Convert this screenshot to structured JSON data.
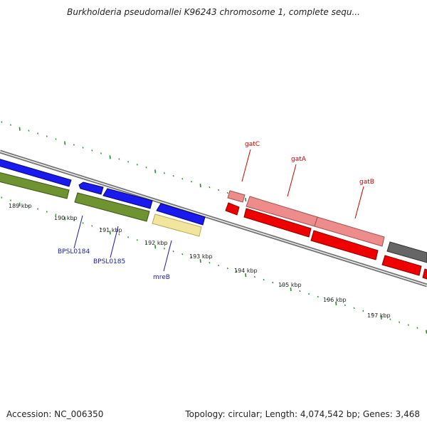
{
  "title": "Burkholderia pseudomallei K96243 chromosome 1, complete sequ...",
  "footer": {
    "accession": "Accession: NC_006350",
    "summary": "Topology: circular; Length: 4,074,542 bp; Genes: 3,468"
  },
  "ticks": [
    "189 kbp",
    "190 kbp",
    "191 kbp",
    "192 kbp",
    "193 kbp",
    "194 kbp",
    "195 kbp",
    "196 kbp",
    "197 kbp"
  ],
  "gene_labels": [
    {
      "name": "BPSL0184",
      "color": "#1a1aa8"
    },
    {
      "name": "BPSL0185",
      "color": "#1a1aa8"
    },
    {
      "name": "mreB",
      "color": "#1a1aa8"
    },
    {
      "name": "gatC",
      "color": "#cc0000"
    },
    {
      "name": "gatA",
      "color": "#cc0000"
    },
    {
      "name": "gatB",
      "color": "#cc0000"
    }
  ],
  "colors": {
    "blue_gene": "#1010e0",
    "green_gene": "#6a8a2a",
    "yellow_gene": "#eee09a",
    "pink_gene": "#e88888",
    "red_gene": "#ee0000",
    "gray_gene": "#666666",
    "backbone": "#888888",
    "tick_green": "#2a8a2a"
  }
}
